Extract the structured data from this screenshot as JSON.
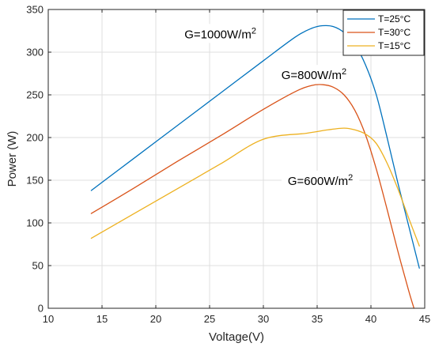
{
  "chart_data": {
    "type": "line",
    "title": "",
    "xlabel": "Voltage(V)",
    "ylabel": "Power (W)",
    "xlim": [
      10,
      45
    ],
    "ylim": [
      0,
      350
    ],
    "xticks": [
      "10",
      "15",
      "20",
      "25",
      "30",
      "35",
      "40",
      "45"
    ],
    "yticks": [
      "0",
      "50",
      "100",
      "150",
      "200",
      "250",
      "300",
      "350"
    ],
    "grid": true,
    "legend_position": "top-right",
    "series": [
      {
        "name": "T=25°C",
        "color": "#0072BD",
        "x": [
          14,
          18,
          22,
          26,
          30,
          33,
          34.5,
          35.5,
          36.5,
          37.5,
          38.5,
          39.5,
          40.5,
          41.5,
          42.5,
          43.5,
          44.5
        ],
        "y": [
          138,
          176,
          214,
          252,
          290,
          318,
          328,
          331,
          330,
          323,
          309,
          285,
          250,
          200,
          147,
          97,
          47
        ]
      },
      {
        "name": "T=30°C",
        "color": "#D95319",
        "x": [
          14,
          18,
          22,
          26,
          30,
          33,
          34.5,
          35.5,
          36.5,
          37.5,
          38.5,
          39.5,
          40.5,
          41.5,
          42.5,
          43.5,
          44
        ],
        "y": [
          111,
          141,
          172,
          202,
          233,
          254,
          261,
          262,
          259,
          250,
          232,
          203,
          163,
          116,
          67,
          21,
          0
        ]
      },
      {
        "name": "T=15°C",
        "color": "#EDB120",
        "x": [
          14,
          18,
          22,
          26,
          30,
          34,
          36,
          37.5,
          38.5,
          39.5,
          40.5,
          41.5,
          42.5,
          43.5,
          44.5
        ],
        "y": [
          82,
          111,
          140,
          169,
          198,
          205,
          209,
          211,
          209,
          204,
          193,
          170,
          140,
          106,
          73
        ]
      }
    ],
    "annotations": [
      {
        "text": "G=1000W/m",
        "superscript": "2",
        "x": 26.0,
        "y": 321
      },
      {
        "text": "G=800W/m",
        "superscript": "2",
        "x": 34.7,
        "y": 273
      },
      {
        "text": "G=600W/m",
        "superscript": "2",
        "x": 35.3,
        "y": 149
      }
    ]
  }
}
